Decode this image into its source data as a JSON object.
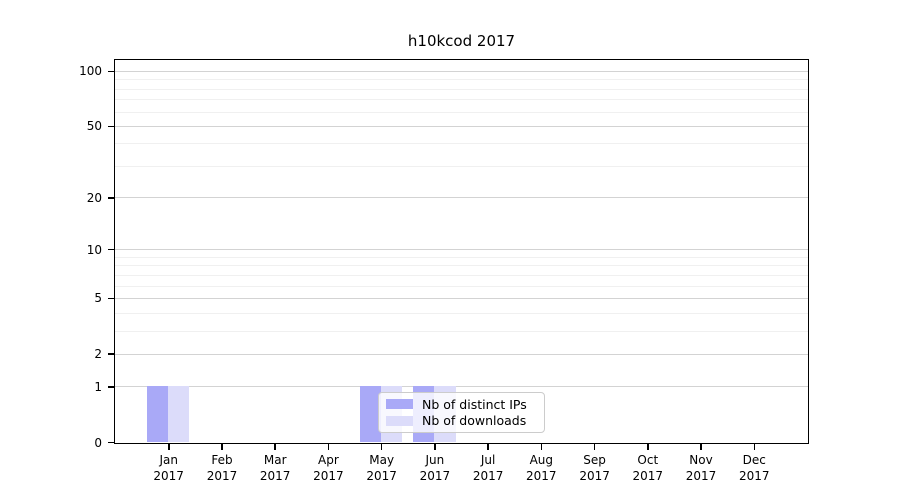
{
  "chart_data": {
    "type": "bar",
    "title": "h10kcod 2017",
    "categories": [
      "Jan",
      "Feb",
      "Mar",
      "Apr",
      "May",
      "Jun",
      "Jul",
      "Aug",
      "Sep",
      "Oct",
      "Nov",
      "Dec"
    ],
    "category_year": "2017",
    "series": [
      {
        "name": "Nb of distinct IPs",
        "color": "#a9a9f7",
        "values": [
          1,
          0,
          0,
          0,
          1,
          1,
          0,
          0,
          0,
          0,
          0,
          0
        ]
      },
      {
        "name": "Nb of downloads",
        "color": "#dcdcfa",
        "values": [
          1,
          0,
          0,
          0,
          1,
          1,
          0,
          0,
          0,
          0,
          0,
          0
        ]
      }
    ],
    "xlabel": "",
    "ylabel": "",
    "yscale": "log1p",
    "ylim": [
      0,
      114.7
    ],
    "yticks": [
      0,
      1,
      2,
      5,
      10,
      20,
      50,
      100
    ],
    "yticks_minor": [
      3,
      4,
      6,
      7,
      8,
      9,
      30,
      40,
      60,
      70,
      80,
      90
    ],
    "grid": "horizontal, major and minor",
    "legend_position": "lower center inside plot",
    "colors": {
      "major_grid": "#d3d3d3",
      "minor_grid": "#f0f0f0",
      "spine": "#000000",
      "text": "#000000",
      "background": "#ffffff"
    }
  }
}
